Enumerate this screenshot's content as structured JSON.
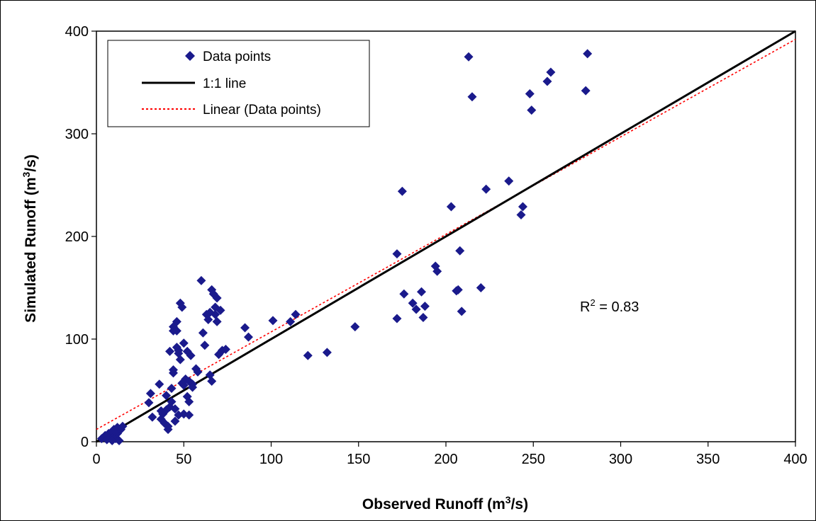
{
  "chart_data": {
    "type": "scatter",
    "title": "",
    "xlabel": "Observed Runoff (m",
    "xlabel_sup": "3",
    "xlabel_end": "/s)",
    "ylabel": "Simulated Runoff (m",
    "ylabel_sup": "3",
    "ylabel_end": "/s)",
    "xlim": [
      0,
      400
    ],
    "ylim": [
      0,
      400
    ],
    "x_ticks": [
      "0",
      "50",
      "100",
      "150",
      "200",
      "250",
      "300",
      "350",
      "400"
    ],
    "y_ticks": [
      "0",
      "100",
      "200",
      "300",
      "400"
    ],
    "x_tick_values": [
      0,
      50,
      100,
      150,
      200,
      250,
      300,
      350,
      400
    ],
    "y_tick_values": [
      0,
      100,
      200,
      300,
      400
    ],
    "grid": false,
    "legend_position": "top-left",
    "legend": {
      "points": "Data points",
      "one_to_one": "1:1 line",
      "trend": "Linear (Data points)"
    },
    "annotation": {
      "prefix": "R",
      "sup": "2",
      "suffix": " = 0.83"
    },
    "colors": {
      "points": "#1a1a8c",
      "one_to_one": "#000000",
      "trend": "#ff0000"
    },
    "one_to_one_line": [
      [
        0,
        0
      ],
      [
        400,
        400
      ]
    ],
    "trend_line": [
      [
        0,
        12
      ],
      [
        400,
        392
      ]
    ],
    "series": [
      {
        "name": "Data points",
        "points": [
          [
            3,
            3
          ],
          [
            5,
            6
          ],
          [
            6,
            2
          ],
          [
            7,
            8
          ],
          [
            8,
            4
          ],
          [
            9,
            10
          ],
          [
            10,
            5
          ],
          [
            10,
            12
          ],
          [
            11,
            3
          ],
          [
            12,
            14
          ],
          [
            12,
            8
          ],
          [
            13,
            1
          ],
          [
            14,
            12
          ],
          [
            15,
            15
          ],
          [
            9,
            1
          ],
          [
            30,
            38
          ],
          [
            31,
            47
          ],
          [
            32,
            24
          ],
          [
            36,
            56
          ],
          [
            37,
            30
          ],
          [
            37,
            22
          ],
          [
            38,
            27
          ],
          [
            39,
            18
          ],
          [
            40,
            45
          ],
          [
            40,
            31
          ],
          [
            41,
            12
          ],
          [
            41,
            15
          ],
          [
            42,
            34
          ],
          [
            42,
            88
          ],
          [
            43,
            39
          ],
          [
            43,
            52
          ],
          [
            44,
            70
          ],
          [
            44,
            67
          ],
          [
            44,
            108
          ],
          [
            44,
            112
          ],
          [
            45,
            32
          ],
          [
            45,
            20
          ],
          [
            46,
            117
          ],
          [
            46,
            108
          ],
          [
            46,
            92
          ],
          [
            47,
            26
          ],
          [
            47,
            86
          ],
          [
            47,
            89
          ],
          [
            48,
            135
          ],
          [
            48,
            80
          ],
          [
            49,
            131
          ],
          [
            49,
            57
          ],
          [
            50,
            96
          ],
          [
            50,
            55
          ],
          [
            50,
            27
          ],
          [
            51,
            61
          ],
          [
            52,
            88
          ],
          [
            52,
            44
          ],
          [
            53,
            59
          ],
          [
            53,
            26
          ],
          [
            53,
            39
          ],
          [
            54,
            84
          ],
          [
            55,
            56
          ],
          [
            55,
            53
          ],
          [
            57,
            71
          ],
          [
            58,
            68
          ],
          [
            60,
            157
          ],
          [
            61,
            106
          ],
          [
            62,
            94
          ],
          [
            63,
            124
          ],
          [
            64,
            119
          ],
          [
            65,
            126
          ],
          [
            65,
            65
          ],
          [
            66,
            148
          ],
          [
            66,
            59
          ],
          [
            67,
            144
          ],
          [
            68,
            131
          ],
          [
            68,
            124
          ],
          [
            69,
            140
          ],
          [
            69,
            117
          ],
          [
            70,
            85
          ],
          [
            71,
            128
          ],
          [
            72,
            89
          ],
          [
            74,
            90
          ],
          [
            85,
            111
          ],
          [
            87,
            102
          ],
          [
            101,
            118
          ],
          [
            111,
            117
          ],
          [
            114,
            124
          ],
          [
            121,
            84
          ],
          [
            132,
            87
          ],
          [
            148,
            112
          ],
          [
            172,
            183
          ],
          [
            172,
            120
          ],
          [
            175,
            244
          ],
          [
            176,
            144
          ],
          [
            181,
            135
          ],
          [
            183,
            129
          ],
          [
            186,
            146
          ],
          [
            187,
            121
          ],
          [
            188,
            132
          ],
          [
            194,
            171
          ],
          [
            195,
            166
          ],
          [
            203,
            229
          ],
          [
            206,
            147
          ],
          [
            207,
            148
          ],
          [
            208,
            186
          ],
          [
            209,
            127
          ],
          [
            213,
            375
          ],
          [
            215,
            336
          ],
          [
            220,
            150
          ],
          [
            223,
            246
          ],
          [
            236,
            254
          ],
          [
            243,
            221
          ],
          [
            244,
            229
          ],
          [
            248,
            339
          ],
          [
            249,
            323
          ],
          [
            258,
            351
          ],
          [
            260,
            360
          ],
          [
            280,
            342
          ],
          [
            281,
            378
          ]
        ]
      }
    ]
  }
}
